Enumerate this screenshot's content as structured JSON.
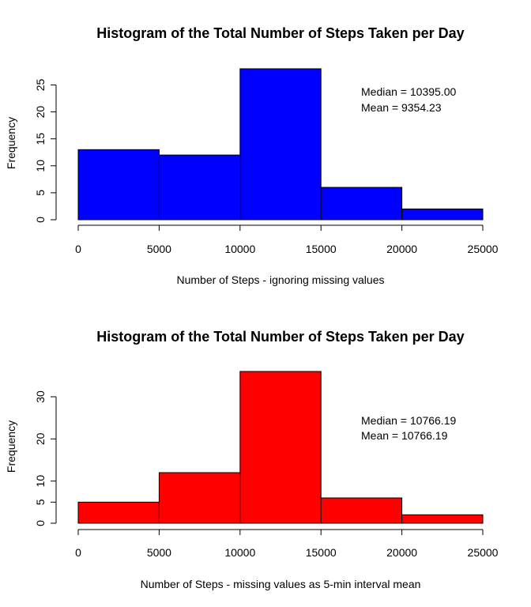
{
  "chart_data": [
    {
      "type": "bar",
      "title": "Histogram of the Total Number of Steps Taken per Day",
      "xlabel": "Number of Steps - ignoring missing values",
      "ylabel": "Frequency",
      "bins": [
        [
          0,
          5000
        ],
        [
          5000,
          10000
        ],
        [
          10000,
          15000
        ],
        [
          15000,
          20000
        ],
        [
          20000,
          25000
        ]
      ],
      "values": [
        13,
        12,
        28,
        6,
        2
      ],
      "xlim": [
        0,
        25000
      ],
      "ylim": [
        0,
        28
      ],
      "xticks": [
        "0",
        "5000",
        "10000",
        "15000",
        "20000",
        "25000"
      ],
      "yticks": [
        "0",
        "5",
        "10",
        "15",
        "20",
        "25"
      ],
      "fill_color": "#0000ff",
      "annotations": [
        "Median = 10395.00",
        "Mean = 9354.23"
      ]
    },
    {
      "type": "bar",
      "title": "Histogram of the Total Number of Steps Taken per Day",
      "xlabel": "Number of Steps - missing values as 5-min interval mean",
      "ylabel": "Frequency",
      "bins": [
        [
          0,
          5000
        ],
        [
          5000,
          10000
        ],
        [
          10000,
          15000
        ],
        [
          15000,
          20000
        ],
        [
          20000,
          25000
        ]
      ],
      "values": [
        5,
        12,
        36,
        6,
        2
      ],
      "xlim": [
        0,
        25000
      ],
      "ylim": [
        0,
        36
      ],
      "xticks": [
        "0",
        "5000",
        "10000",
        "15000",
        "20000",
        "25000"
      ],
      "yticks": [
        "0",
        "5",
        "10",
        "20",
        "30"
      ],
      "fill_color": "#ff0000",
      "annotations": [
        "Median = 10766.19",
        "Mean = 10766.19"
      ]
    }
  ]
}
